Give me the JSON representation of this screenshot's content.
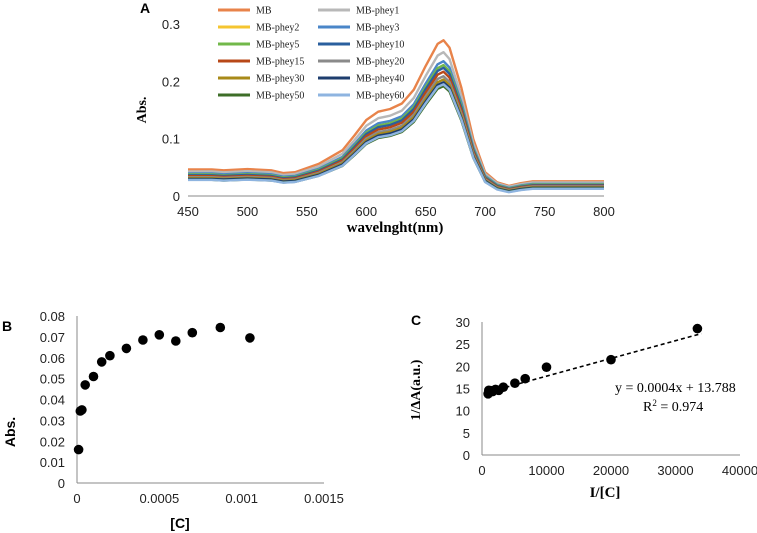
{
  "chart_data": [
    {
      "panel": "A",
      "type": "line",
      "xlabel": "wavelnght(nm)",
      "ylabel": "Abs.",
      "xlim": [
        450,
        800
      ],
      "ylim": [
        0,
        0.3
      ],
      "xticks": [
        "450",
        "500",
        "550",
        "600",
        "650",
        "700",
        "750",
        "800"
      ],
      "yticks": [
        "0",
        "0.1",
        "0.2",
        "0.3"
      ],
      "legend": "top-left",
      "x": [
        450,
        470,
        480,
        500,
        520,
        530,
        540,
        560,
        580,
        590,
        600,
        610,
        620,
        630,
        640,
        650,
        660,
        665,
        670,
        680,
        690,
        700,
        710,
        720,
        730,
        740,
        750,
        760,
        780,
        800
      ],
      "base_shape": [
        0.115,
        0.115,
        0.11,
        0.117,
        0.11,
        0.095,
        0.1,
        0.145,
        0.22,
        0.3,
        0.385,
        0.43,
        0.445,
        0.475,
        0.55,
        0.68,
        0.8,
        0.82,
        0.78,
        0.56,
        0.28,
        0.1,
        0.045,
        0.025,
        0.04,
        0.05,
        0.05,
        0.05,
        0.05,
        0.05
      ],
      "series": [
        {
          "name": "MB",
          "color": "#e8834a",
          "peak": 0.262
        },
        {
          "name": "MB-phey1",
          "color": "#b8b8b8",
          "peak": 0.242
        },
        {
          "name": "MB-phey2",
          "color": "#f5c530",
          "peak": 0.185
        },
        {
          "name": "MB-phey3",
          "color": "#4a86c8",
          "peak": 0.228
        },
        {
          "name": "MB-phey5",
          "color": "#72b84a",
          "peak": 0.222
        },
        {
          "name": "MB-phey10",
          "color": "#2a5f9e",
          "peak": 0.218
        },
        {
          "name": "MB-phey15",
          "color": "#b84818",
          "peak": 0.212
        },
        {
          "name": "MB-phey20",
          "color": "#8a8a8a",
          "peak": 0.205
        },
        {
          "name": "MB-phey30",
          "color": "#a88a18",
          "peak": 0.2
        },
        {
          "name": "MB-phey40",
          "color": "#1e3e6e",
          "peak": 0.196
        },
        {
          "name": "MB-phey50",
          "color": "#3e6e28",
          "peak": 0.19
        },
        {
          "name": "MB-phey60",
          "color": "#8eb4e0",
          "peak": 0.194
        }
      ]
    },
    {
      "panel": "B",
      "type": "scatter",
      "xlabel": "[C]",
      "ylabel": "Abs.",
      "xlim": [
        0,
        0.0015
      ],
      "ylim": [
        0,
        0.08
      ],
      "xticks": [
        "0",
        "0.0005",
        "0.001",
        "0.0015"
      ],
      "yticks": [
        "0",
        "0.01",
        "0.02",
        "0.03",
        "0.04",
        "0.05",
        "0.06",
        "0.07",
        "0.08"
      ],
      "points": [
        [
          1e-05,
          0.016
        ],
        [
          2e-05,
          0.0345
        ],
        [
          3e-05,
          0.035
        ],
        [
          5e-05,
          0.047
        ],
        [
          0.0001,
          0.051
        ],
        [
          0.00015,
          0.058
        ],
        [
          0.0002,
          0.061
        ],
        [
          0.0003,
          0.0645
        ],
        [
          0.0004,
          0.0685
        ],
        [
          0.0005,
          0.071
        ],
        [
          0.0006,
          0.068
        ],
        [
          0.0007,
          0.072
        ],
        [
          0.00087,
          0.0745
        ],
        [
          0.00105,
          0.0695
        ]
      ]
    },
    {
      "panel": "C",
      "type": "scatter",
      "xlabel": "I/[C]",
      "ylabel": "1/ΔA(a.u.)",
      "xlim": [
        0,
        40000
      ],
      "ylim": [
        0,
        30
      ],
      "xticks": [
        "0",
        "10000",
        "20000",
        "30000",
        "40000"
      ],
      "yticks": [
        "0",
        "5",
        "10",
        "15",
        "20",
        "25",
        "30"
      ],
      "points": [
        [
          950,
          13.8
        ],
        [
          1050,
          14.6
        ],
        [
          1400,
          14.5
        ],
        [
          1650,
          14.3
        ],
        [
          2100,
          14.8
        ],
        [
          2600,
          14.6
        ],
        [
          3300,
          15.3
        ],
        [
          5100,
          16.2
        ],
        [
          6700,
          17.2
        ],
        [
          10000,
          19.8
        ],
        [
          20000,
          21.5
        ],
        [
          33400,
          28.5
        ]
      ],
      "trendline": {
        "x": [
          500,
          34000
        ],
        "slope": 0.0004,
        "intercept": 13.788
      },
      "annotation": {
        "equation": "y = 0.0004x + 13.788",
        "r2_prefix": "R",
        "r2_sup": "2",
        "r2_value": " = 0.974"
      }
    }
  ]
}
